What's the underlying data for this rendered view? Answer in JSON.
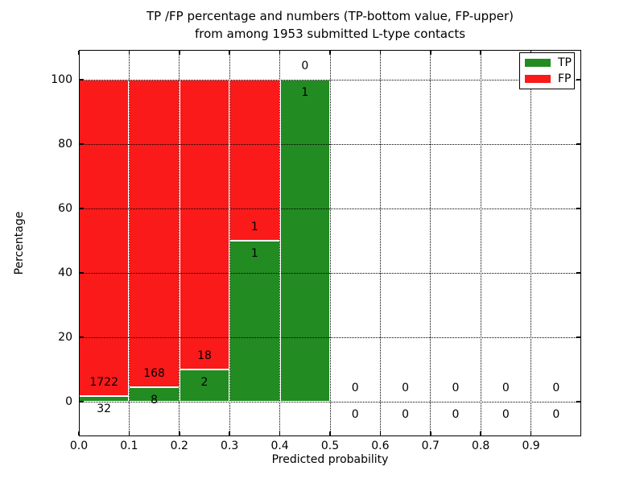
{
  "figure": {
    "title_line1": "TP /FP percentage and numbers (TP-bottom value, FP-upper)",
    "title_line2": "from among 1953 submitted L-type contacts",
    "xlabel": "Predicted probability",
    "ylabel": "Percentage"
  },
  "colors": {
    "tp_green": "#228b22",
    "fp_red": "#fa1a1a",
    "grid": "#000000",
    "bar_edge": "#ffffff",
    "background": "#ffffff"
  },
  "legend": {
    "items": [
      {
        "label": "TP",
        "color_key": "tp_green"
      },
      {
        "label": "FP",
        "color_key": "fp_red"
      }
    ]
  },
  "chart_data": {
    "type": "bar",
    "stacked": true,
    "title": "TP /FP percentage and numbers (TP-bottom value, FP-upper)\nfrom among 1953 submitted L-type contacts",
    "xlabel": "Predicted probability",
    "ylabel": "Percentage",
    "total_submitted_contacts": 1953,
    "xlim": [
      0.0,
      1.0
    ],
    "ylim": [
      -10.75,
      109.25
    ],
    "grid": true,
    "legend_position": "upper right",
    "xticks": [
      {
        "v": 0.0,
        "label": "0.0"
      },
      {
        "v": 0.1,
        "label": "0.1"
      },
      {
        "v": 0.2,
        "label": "0.2"
      },
      {
        "v": 0.3,
        "label": "0.3"
      },
      {
        "v": 0.4,
        "label": "0.4"
      },
      {
        "v": 0.5,
        "label": "0.5"
      },
      {
        "v": 0.6,
        "label": "0.6"
      },
      {
        "v": 0.7,
        "label": "0.7"
      },
      {
        "v": 0.8,
        "label": "0.8"
      },
      {
        "v": 0.9,
        "label": "0.9"
      }
    ],
    "yticks": [
      {
        "v": 0,
        "label": "0"
      },
      {
        "v": 20,
        "label": "20"
      },
      {
        "v": 40,
        "label": "40"
      },
      {
        "v": 60,
        "label": "60"
      },
      {
        "v": 80,
        "label": "80"
      },
      {
        "v": 100,
        "label": "100"
      }
    ],
    "series_note": "green TP segment on bottom (tp_pct), red FP segment stacked to 100%; labels show raw counts: FP above boundary, TP below boundary",
    "bins": [
      {
        "x0": 0.0,
        "x1": 0.1,
        "tp_count": 32,
        "fp_count": 1722,
        "tp_pct": 1.82,
        "fp_pct": 98.18
      },
      {
        "x0": 0.1,
        "x1": 0.2,
        "tp_count": 8,
        "fp_count": 168,
        "tp_pct": 4.55,
        "fp_pct": 95.45
      },
      {
        "x0": 0.2,
        "x1": 0.3,
        "tp_count": 2,
        "fp_count": 18,
        "tp_pct": 10.0,
        "fp_pct": 90.0
      },
      {
        "x0": 0.3,
        "x1": 0.4,
        "tp_count": 1,
        "fp_count": 1,
        "tp_pct": 50.0,
        "fp_pct": 50.0
      },
      {
        "x0": 0.4,
        "x1": 0.5,
        "tp_count": 1,
        "fp_count": 0,
        "tp_pct": 100.0,
        "fp_pct": 0.0
      },
      {
        "x0": 0.5,
        "x1": 0.6,
        "tp_count": 0,
        "fp_count": 0,
        "tp_pct": 0.0,
        "fp_pct": 0.0
      },
      {
        "x0": 0.6,
        "x1": 0.7,
        "tp_count": 0,
        "fp_count": 0,
        "tp_pct": 0.0,
        "fp_pct": 0.0
      },
      {
        "x0": 0.7,
        "x1": 0.8,
        "tp_count": 0,
        "fp_count": 0,
        "tp_pct": 0.0,
        "fp_pct": 0.0
      },
      {
        "x0": 0.8,
        "x1": 0.9,
        "tp_count": 0,
        "fp_count": 0,
        "tp_pct": 0.0,
        "fp_pct": 0.0
      },
      {
        "x0": 0.9,
        "x1": 1.0,
        "tp_count": 0,
        "fp_count": 0,
        "tp_pct": 0.0,
        "fp_pct": 0.0
      }
    ]
  }
}
